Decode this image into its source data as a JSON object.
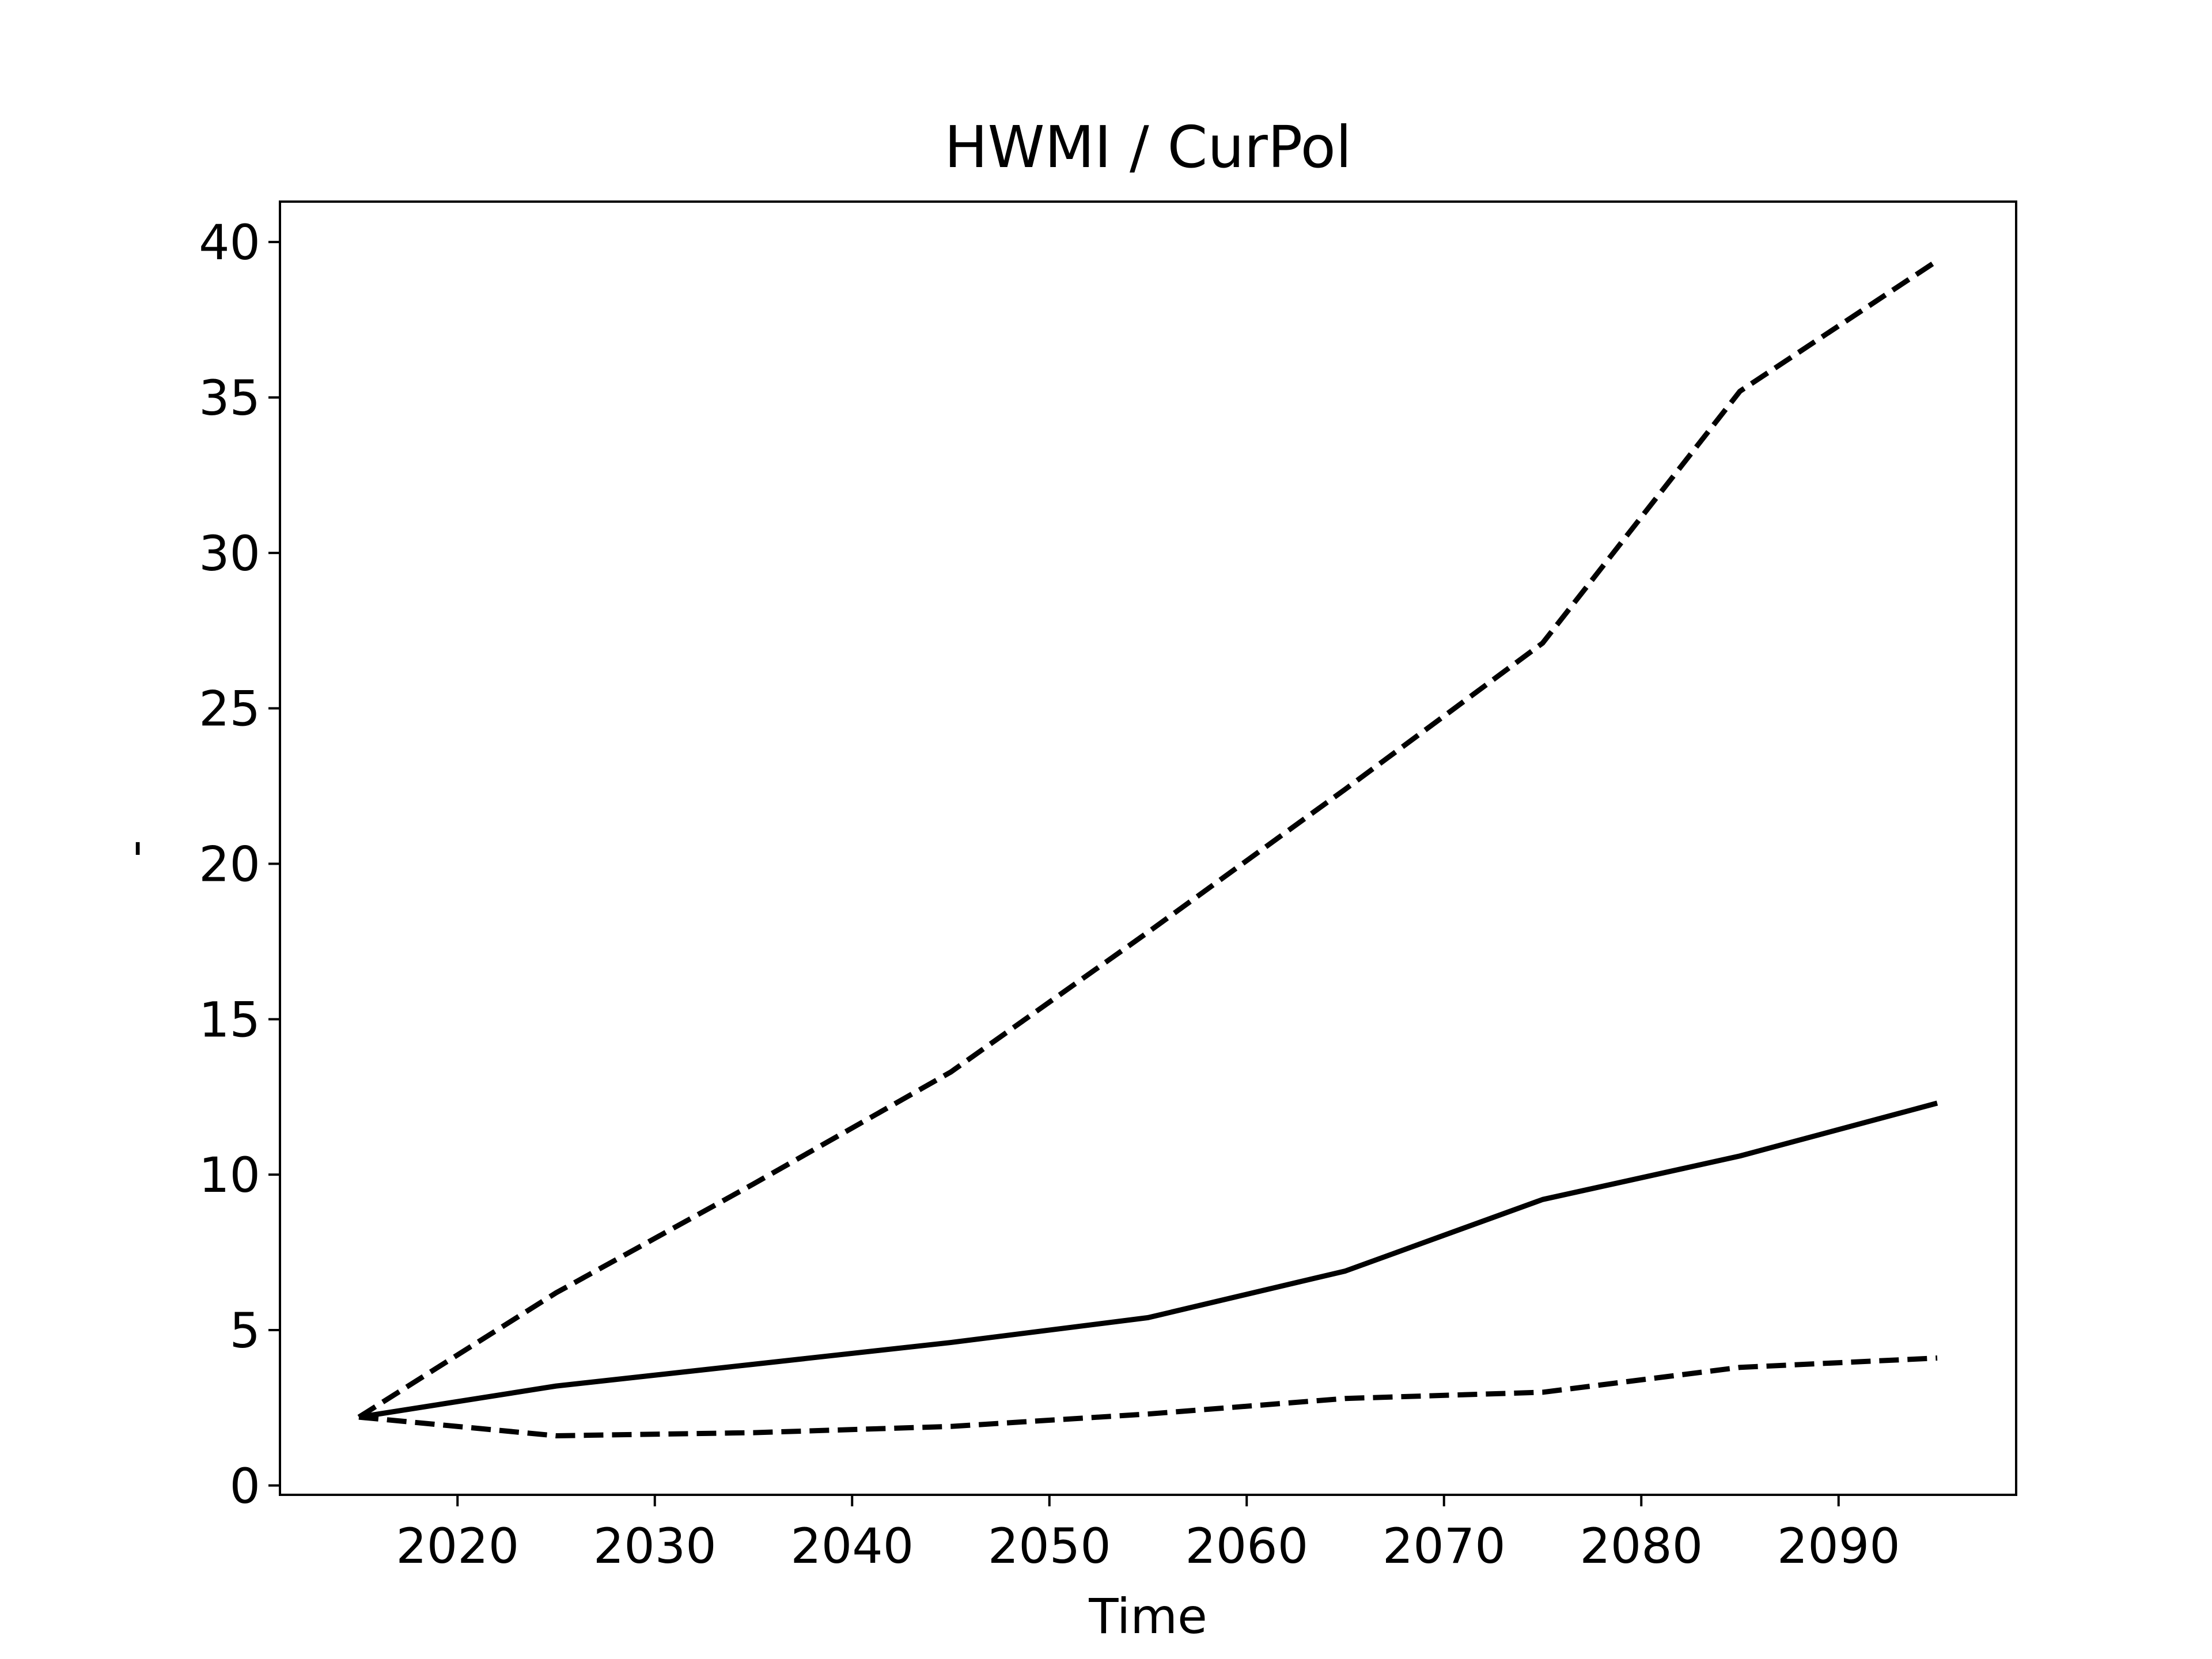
{
  "chart_data": {
    "type": "line",
    "title": "HWMI / CurPol",
    "x_label": "Time",
    "y_label": "-",
    "x": [
      2015,
      2025,
      2035,
      2045,
      2055,
      2065,
      2075,
      2085,
      2095
    ],
    "series": [
      {
        "color": "#000000",
        "linestyle": "dashed",
        "values": [
          2.2,
          6.2,
          9.7,
          13.3,
          17.8,
          22.4,
          27.1,
          35.2,
          39.4
        ]
      },
      {
        "color": "#000000",
        "linestyle": "solid",
        "values": [
          2.2,
          3.2,
          3.9,
          4.6,
          5.4,
          6.9,
          9.2,
          10.6,
          12.3
        ]
      },
      {
        "color": "#000000",
        "linestyle": "dashed",
        "values": [
          2.2,
          1.6,
          1.7,
          1.9,
          2.3,
          2.8,
          3.0,
          3.8,
          4.1
        ]
      }
    ],
    "xlim": [
      2011,
      2099
    ],
    "xticks": [
      2020,
      2030,
      2040,
      2050,
      2060,
      2070,
      2080,
      2090
    ],
    "ylim": [
      -0.3,
      41.3
    ],
    "yticks": [
      0,
      5,
      10,
      15,
      20,
      25,
      30,
      35,
      40
    ],
    "grid": false
  }
}
